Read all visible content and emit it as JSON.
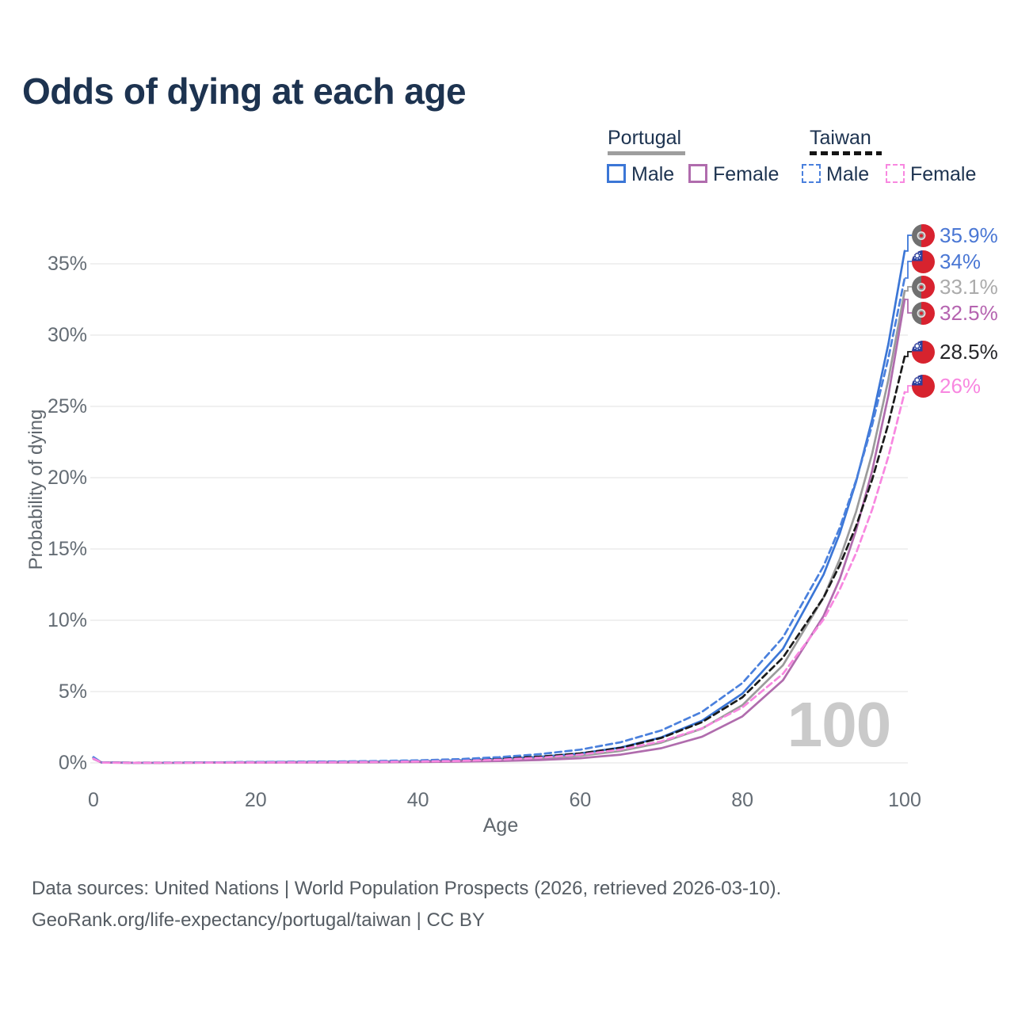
{
  "header": {
    "title": "Odds of dying at each age"
  },
  "legend": {
    "portugal": {
      "label": "Portugal",
      "line_style": "solid",
      "line_color": "#9e9e9e"
    },
    "taiwan": {
      "label": "Taiwan",
      "line_style": "dashed",
      "line_color": "#141414"
    },
    "items": [
      {
        "label": "Male",
        "country": "Portugal",
        "style": "solid",
        "color": "#3b76d6"
      },
      {
        "label": "Female",
        "country": "Portugal",
        "style": "solid",
        "color": "#b06cad"
      },
      {
        "label": "Male",
        "country": "Taiwan",
        "style": "dashed",
        "color": "#4a80dd"
      },
      {
        "label": "Female",
        "country": "Taiwan",
        "style": "dashed",
        "color": "#f887e0"
      }
    ]
  },
  "chart_data": {
    "type": "line",
    "title": "Odds of dying at each age",
    "xlabel": "Age",
    "ylabel": "Probability of dying",
    "xlim": [
      0,
      100
    ],
    "ylim_pct": [
      0,
      35
    ],
    "xticks": [
      0,
      20,
      40,
      60,
      80,
      100
    ],
    "yticks_pct": [
      0,
      5,
      10,
      15,
      20,
      25,
      30,
      35
    ],
    "ytick_labels": [
      "0%",
      "5%",
      "10%",
      "15%",
      "20%",
      "25%",
      "30%",
      "35%"
    ],
    "grid": "horizontal",
    "legend_position": "top-right",
    "watermark": "100",
    "ages": [
      0,
      1,
      5,
      10,
      15,
      20,
      25,
      30,
      35,
      40,
      45,
      50,
      55,
      60,
      65,
      70,
      75,
      80,
      85,
      90,
      92,
      94,
      96,
      98,
      100
    ],
    "series": [
      {
        "id": "portugal-male",
        "name": "Portugal Male",
        "country": "portugal",
        "sex": "male",
        "color": "#3b76d6",
        "dash": false,
        "flag": "pt",
        "end_label": "35.9%",
        "end_label_color": "#4a77d4",
        "end_value_pct": 35.9,
        "values_pct": [
          0.35,
          0.03,
          0.01,
          0.01,
          0.03,
          0.05,
          0.06,
          0.07,
          0.09,
          0.12,
          0.18,
          0.28,
          0.42,
          0.66,
          1.08,
          1.79,
          2.95,
          4.86,
          8.0,
          13.2,
          16.1,
          19.7,
          24.1,
          29.4,
          35.9
        ]
      },
      {
        "id": "portugal-all",
        "name": "Portugal",
        "country": "portugal",
        "sex": "all",
        "color": "#9b9b9b",
        "dash": false,
        "flag": "pt",
        "end_label": "33.1%",
        "end_label_color": "#ababab",
        "end_value_pct": 33.1,
        "values_pct": [
          0.32,
          0.025,
          0.01,
          0.01,
          0.02,
          0.04,
          0.05,
          0.05,
          0.07,
          0.09,
          0.13,
          0.2,
          0.31,
          0.5,
          0.84,
          1.42,
          2.4,
          4.05,
          6.85,
          11.6,
          14.3,
          17.6,
          21.7,
          26.9,
          33.1
        ]
      },
      {
        "id": "portugal-female",
        "name": "Portugal Female",
        "country": "portugal",
        "sex": "female",
        "color": "#b06cad",
        "dash": false,
        "flag": "pt",
        "end_label": "32.5%",
        "end_label_color": "#b564b0",
        "end_value_pct": 32.5,
        "values_pct": [
          0.28,
          0.02,
          0.008,
          0.008,
          0.015,
          0.02,
          0.03,
          0.03,
          0.04,
          0.06,
          0.09,
          0.13,
          0.2,
          0.33,
          0.58,
          1.03,
          1.83,
          3.26,
          5.8,
          10.3,
          12.9,
          16.3,
          20.5,
          25.8,
          32.5
        ]
      },
      {
        "id": "taiwan-all",
        "name": "Taiwan",
        "country": "taiwan",
        "sex": "all",
        "color": "#1a1a1a",
        "dash": true,
        "flag": "tw",
        "end_label": "28.5%",
        "end_label_color": "#262629",
        "end_value_pct": 28.5,
        "values_pct": [
          0.36,
          0.025,
          0.01,
          0.015,
          0.03,
          0.05,
          0.07,
          0.08,
          0.1,
          0.14,
          0.2,
          0.3,
          0.44,
          0.66,
          1.05,
          1.75,
          2.85,
          4.6,
          7.39,
          11.59,
          13.87,
          16.6,
          19.88,
          23.8,
          28.5
        ]
      },
      {
        "id": "taiwan-male",
        "name": "Taiwan Male",
        "country": "taiwan",
        "sex": "male",
        "color": "#4a80dd",
        "dash": true,
        "flag": "tw",
        "end_label": "34%",
        "end_label_color": "#4a77d4",
        "end_value_pct": 34,
        "values_pct": [
          0.4,
          0.03,
          0.01,
          0.02,
          0.04,
          0.06,
          0.08,
          0.1,
          0.13,
          0.18,
          0.26,
          0.4,
          0.61,
          0.93,
          1.45,
          2.28,
          3.57,
          5.6,
          8.8,
          13.8,
          16.5,
          19.8,
          23.7,
          28.4,
          34.0
        ]
      },
      {
        "id": "taiwan-female",
        "name": "Taiwan Female",
        "country": "taiwan",
        "sex": "female",
        "color": "#f887e0",
        "dash": true,
        "flag": "tw",
        "end_label": "26%",
        "end_label_color": "#f887e0",
        "end_value_pct": 26,
        "values_pct": [
          0.3,
          0.02,
          0.008,
          0.01,
          0.02,
          0.03,
          0.04,
          0.05,
          0.07,
          0.1,
          0.14,
          0.22,
          0.36,
          0.58,
          0.94,
          1.51,
          2.42,
          3.89,
          6.25,
          10.06,
          12.17,
          14.7,
          17.78,
          21.5,
          26.0
        ]
      }
    ]
  },
  "footer": {
    "line1": "Data sources: United Nations | World Population Prospects (2026, retrieved 2026-03-10).",
    "line2": "GeoRank.org/life-expectancy/portugal/taiwan | CC BY"
  }
}
